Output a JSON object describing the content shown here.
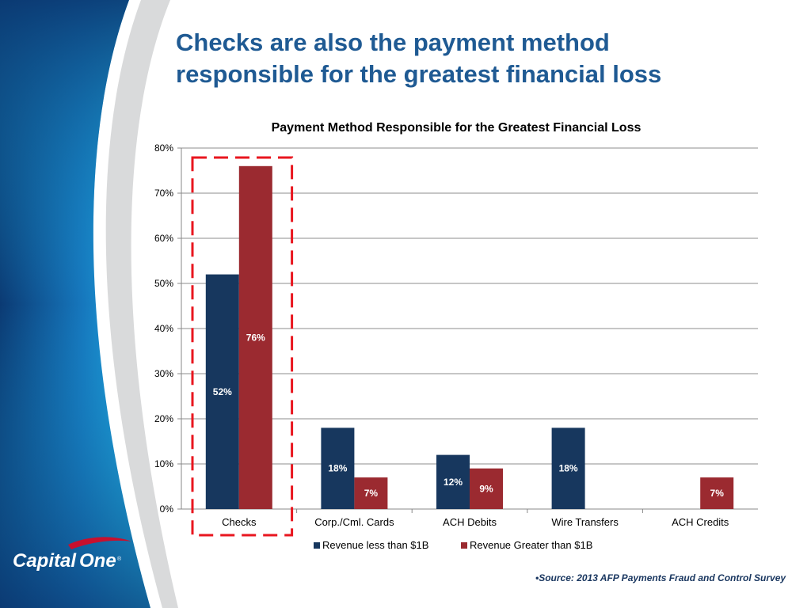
{
  "slide": {
    "title_line1": "Checks are also the payment method",
    "title_line2": "responsible for the greatest financial loss",
    "source_note": "•Source: 2013 AFP Payments Fraud and Control Survey",
    "logo_text": "CapitalOne"
  },
  "colors": {
    "title": "#1f5a93",
    "series_1": "#17375e",
    "series_2": "#9b2a30",
    "highlight_box": "#e8161f",
    "sidebar_dark": "#0b3a73",
    "sidebar_light": "#1aa7dc"
  },
  "chart_data": {
    "type": "bar",
    "title": "Payment Method Responsible for the Greatest Financial Loss",
    "categories": [
      "Checks",
      "Corp./Cml. Cards",
      "ACH Debits",
      "Wire Transfers",
      "ACH Credits"
    ],
    "series": [
      {
        "name": "Revenue less than $1B",
        "values": [
          52,
          18,
          12,
          18,
          null
        ],
        "labels": [
          "52%",
          "18%",
          "12%",
          "18%",
          ""
        ]
      },
      {
        "name": "Revenue Greater than $1B",
        "values": [
          76,
          7,
          9,
          null,
          7
        ],
        "labels": [
          "76%",
          "7%",
          "9%",
          "",
          "7%"
        ]
      }
    ],
    "yticks": [
      "0%",
      "10%",
      "20%",
      "30%",
      "40%",
      "50%",
      "60%",
      "70%",
      "80%"
    ],
    "ylim": [
      0,
      80
    ],
    "grid": true,
    "legend_position": "bottom",
    "highlighted_category": "Checks"
  }
}
